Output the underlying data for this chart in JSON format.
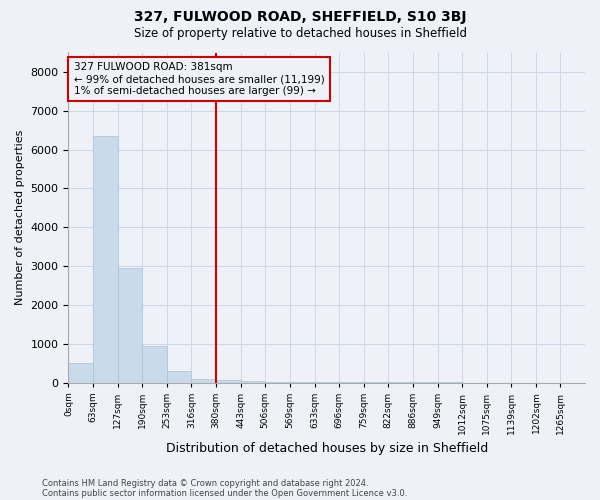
{
  "title": "327, FULWOOD ROAD, SHEFFIELD, S10 3BJ",
  "subtitle": "Size of property relative to detached houses in Sheffield",
  "xlabel": "Distribution of detached houses by size in Sheffield",
  "ylabel": "Number of detached properties",
  "footnote1": "Contains HM Land Registry data © Crown copyright and database right 2024.",
  "footnote2": "Contains public sector information licensed under the Open Government Licence v3.0.",
  "annotation_line1": "327 FULWOOD ROAD: 381sqm",
  "annotation_line2": "← 99% of detached houses are smaller (11,199)",
  "annotation_line3": "1% of semi-detached houses are larger (99) →",
  "bar_color": "#c9daea",
  "bar_edgecolor": "#a8c4d8",
  "redline_color": "#cc0000",
  "bin_edges": [
    0,
    63,
    127,
    190,
    253,
    316,
    380,
    443,
    506,
    569,
    633,
    696,
    759,
    822,
    886,
    949,
    1012,
    1075,
    1139,
    1202,
    1265
  ],
  "bin_labels": [
    "0sqm",
    "63sqm",
    "127sqm",
    "190sqm",
    "253sqm",
    "316sqm",
    "380sqm",
    "443sqm",
    "506sqm",
    "569sqm",
    "633sqm",
    "696sqm",
    "759sqm",
    "822sqm",
    "886sqm",
    "949sqm",
    "1012sqm",
    "1075sqm",
    "1139sqm",
    "1202sqm",
    "1265sqm"
  ],
  "bar_heights": [
    500,
    6350,
    2950,
    950,
    300,
    100,
    60,
    30,
    15,
    8,
    5,
    3,
    2,
    1,
    1,
    1,
    0,
    0,
    0,
    0
  ],
  "redline_bin_index": 6,
  "ylim": [
    0,
    8500
  ],
  "yticks": [
    0,
    1000,
    2000,
    3000,
    4000,
    5000,
    6000,
    7000,
    8000
  ],
  "grid_color": "#d0d8e8",
  "bg_color": "#eef2f8"
}
